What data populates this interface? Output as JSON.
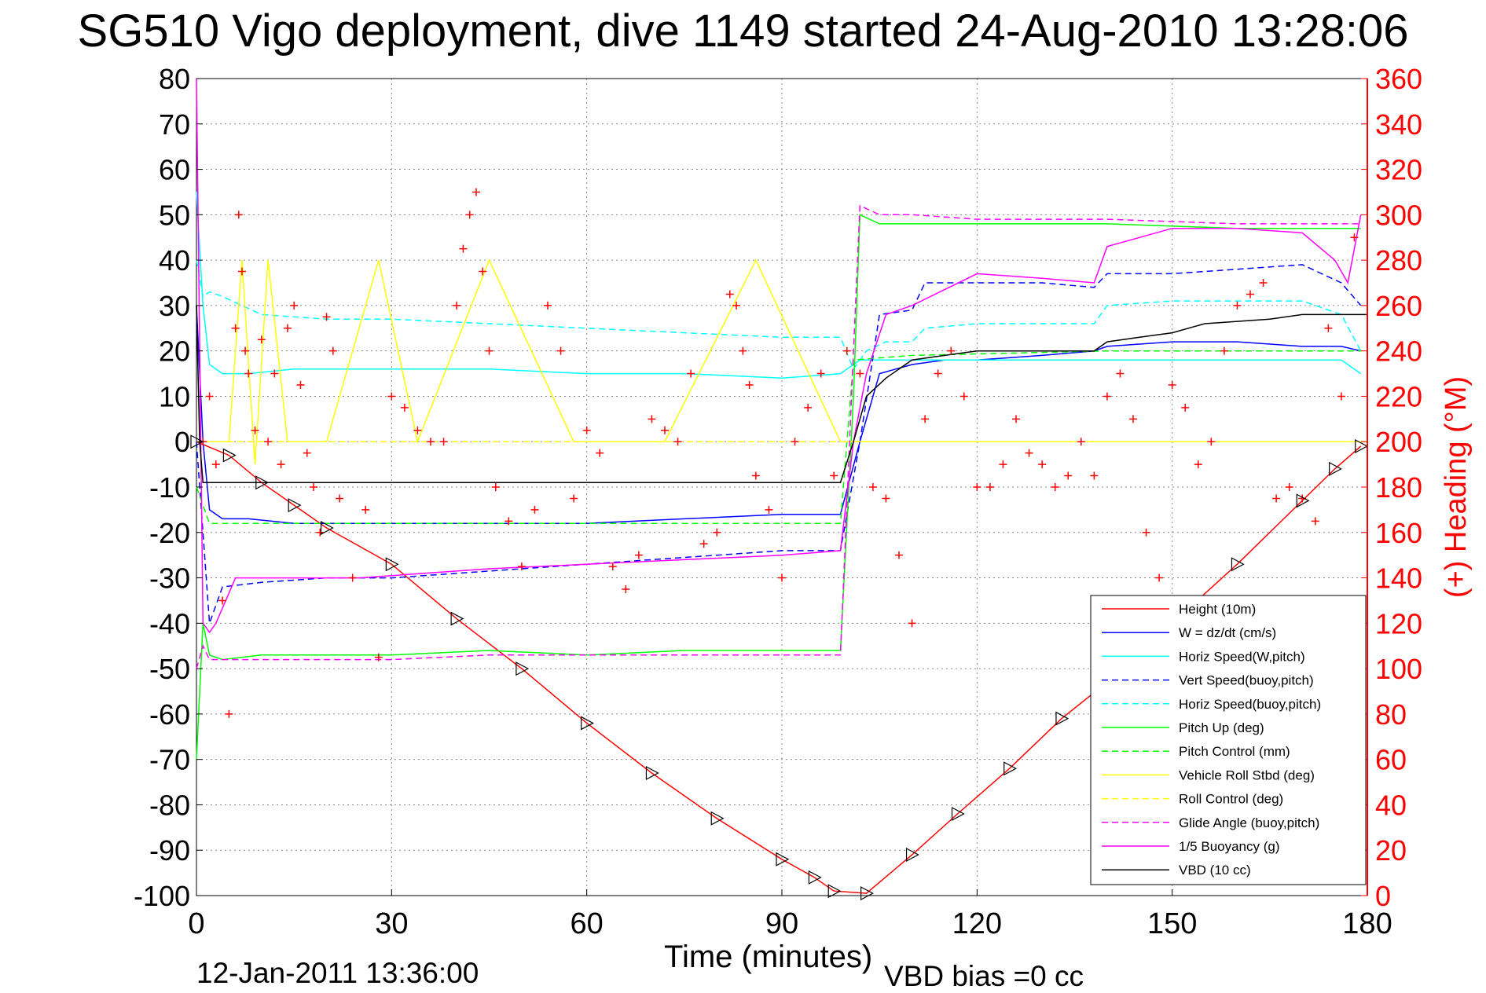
{
  "title": "SG510 Vigo deployment, dive 1149 started 24-Aug-2010 13:28:06",
  "footer": {
    "date": "12-Jan-2011 13:36:00",
    "vbd_bias": "VBD bias =0 cc"
  },
  "chart_data": {
    "type": "line",
    "xlabel": "Time (minutes)",
    "ylabel": "",
    "y2label": "(+) Heading (°M)",
    "xlim": [
      0,
      180
    ],
    "ylim": [
      -100,
      80
    ],
    "y2lim": [
      0,
      360
    ],
    "xticks": [
      "0",
      "30",
      "60",
      "90",
      "120",
      "150",
      "180"
    ],
    "yticks": [
      "80",
      "70",
      "60",
      "50",
      "40",
      "30",
      "20",
      "10",
      "0",
      "-10",
      "-20",
      "-30",
      "-40",
      "-50",
      "-60",
      "-70",
      "-80",
      "-90",
      "-100"
    ],
    "y2ticks": [
      "360",
      "340",
      "320",
      "300",
      "280",
      "260",
      "240",
      "220",
      "200",
      "180",
      "160",
      "140",
      "120",
      "100",
      "80",
      "60",
      "40",
      "20",
      "0"
    ],
    "grid": true,
    "legend_position": "lower-right",
    "colors": {
      "red": "#ff0000",
      "blue": "#0000ff",
      "cyan": "#00ffff",
      "green": "#00ff00",
      "yellow": "#ffff00",
      "magenta": "#ff00ff",
      "black": "#000000"
    },
    "series": [
      {
        "name": "Height (10m)",
        "color": "#ff0000",
        "style": "solid",
        "x": [
          0,
          5,
          10,
          15,
          20,
          30,
          40,
          50,
          60,
          70,
          80,
          90,
          95,
          98,
          103,
          110,
          117,
          125,
          133,
          140,
          150,
          160,
          170,
          175,
          179
        ],
        "y": [
          0,
          -3,
          -9,
          -14,
          -19,
          -27,
          -39,
          -50,
          -62,
          -73,
          -83,
          -92,
          -96,
          -99,
          -99.5,
          -91,
          -82,
          -72,
          -61,
          -53,
          -40,
          -27,
          -13,
          -6,
          -1
        ]
      },
      {
        "name": "W = dz/dt (cm/s)",
        "color": "#0000ff",
        "style": "solid",
        "x": [
          0,
          1,
          2,
          4,
          8,
          15,
          30,
          45,
          60,
          75,
          90,
          99,
          102,
          105,
          110,
          115,
          120,
          130,
          138,
          140,
          150,
          160,
          170,
          176,
          179
        ],
        "y": [
          30,
          0,
          -15,
          -17,
          -17,
          -18,
          -18,
          -18,
          -18,
          -17,
          -16,
          -16,
          0,
          15,
          17,
          18,
          18,
          19,
          20,
          21,
          22,
          22,
          21,
          21,
          20
        ]
      },
      {
        "name": "Horiz Speed(W,pitch)",
        "color": "#00ffff",
        "style": "solid",
        "x": [
          0,
          1,
          2,
          4,
          8,
          15,
          30,
          45,
          60,
          75,
          90,
          99,
          102,
          105,
          110,
          120,
          140,
          160,
          176,
          179
        ],
        "y": [
          55,
          30,
          17,
          15,
          15,
          16,
          16,
          16,
          15,
          15,
          14,
          15,
          18,
          18,
          18,
          18,
          18,
          18,
          18,
          15
        ]
      },
      {
        "name": "Vert Speed(buoy,pitch)",
        "color": "#0000ff",
        "style": "dashed",
        "x": [
          0,
          1,
          2,
          4,
          10,
          20,
          30,
          40,
          50,
          60,
          70,
          80,
          90,
          99,
          102,
          105,
          110,
          112,
          120,
          130,
          138,
          140,
          150,
          160,
          170,
          176,
          179
        ],
        "y": [
          0,
          -20,
          -40,
          -32,
          -31,
          -30,
          -30,
          -29,
          -28,
          -27,
          -26,
          -25,
          -24,
          -24,
          0,
          28,
          29,
          35,
          35,
          35,
          34,
          37,
          37,
          38,
          39,
          35,
          30
        ]
      },
      {
        "name": "Horiz Speed(buoy,pitch)",
        "color": "#00ffff",
        "style": "dashed",
        "x": [
          0,
          1,
          2,
          4,
          10,
          20,
          30,
          45,
          60,
          75,
          90,
          99,
          101,
          103,
          106,
          110,
          112,
          120,
          130,
          138,
          140,
          150,
          160,
          170,
          176,
          179
        ],
        "y": [
          40,
          32,
          33,
          32,
          28,
          27,
          27,
          26,
          25,
          24,
          23,
          23,
          16,
          20,
          22,
          22,
          25,
          26,
          26,
          26,
          30,
          31,
          31,
          31,
          28,
          20
        ]
      },
      {
        "name": "Pitch Up (deg)",
        "color": "#00ff00",
        "style": "solid",
        "x": [
          0,
          1,
          2,
          4,
          10,
          20,
          30,
          45,
          60,
          75,
          90,
          99,
          101,
          102,
          105,
          110,
          120,
          140,
          160,
          170,
          176,
          179
        ],
        "y": [
          -70,
          -40,
          -47,
          -48,
          -47,
          -47,
          -47,
          -46,
          -47,
          -46,
          -46,
          -46,
          10,
          50,
          48,
          48,
          48,
          48,
          47,
          47,
          47,
          47
        ]
      },
      {
        "name": "Pitch Control (mm)",
        "color": "#00ff00",
        "style": "dashed",
        "x": [
          0,
          2,
          5,
          99,
          101,
          110,
          140,
          179
        ],
        "y": [
          -10,
          -18,
          -18,
          -18,
          18,
          19,
          20,
          20
        ]
      },
      {
        "name": "Vehicle Roll Stbd (deg)",
        "color": "#ffff00",
        "style": "solid",
        "x": [
          0,
          5,
          7,
          9,
          11,
          14,
          20,
          28,
          34,
          45,
          58,
          72,
          86,
          99,
          102,
          110,
          130,
          145,
          160,
          170,
          179
        ],
        "y": [
          0,
          0,
          40,
          -5,
          40,
          0,
          0,
          40,
          0,
          40,
          0,
          0,
          40,
          0,
          0,
          0,
          0,
          0,
          0,
          0,
          0
        ]
      },
      {
        "name": "Roll Control (deg)",
        "color": "#ffff00",
        "style": "dashed",
        "x": [
          0,
          180
        ],
        "y": [
          0,
          0
        ]
      },
      {
        "name": "Glide Angle (buoy,pitch)",
        "color": "#ff00ff",
        "style": "dashed",
        "x": [
          0,
          1,
          2,
          4,
          10,
          20,
          30,
          45,
          60,
          75,
          90,
          99,
          101,
          102,
          105,
          110,
          120,
          140,
          160,
          170,
          176,
          179
        ],
        "y": [
          -50,
          -45,
          -48,
          -48,
          -48,
          -48,
          -48,
          -47,
          -47,
          -47,
          -47,
          -47,
          20,
          52,
          50,
          50,
          49,
          49,
          48,
          48,
          48,
          48
        ]
      },
      {
        "name": "1/5 Buoyancy (g)",
        "color": "#ff00ff",
        "style": "solid",
        "x": [
          0,
          1,
          2,
          3,
          6,
          15,
          25,
          35,
          45,
          60,
          75,
          90,
          99,
          101,
          103,
          106,
          110,
          120,
          130,
          138,
          140,
          150,
          160,
          170,
          175,
          177,
          179
        ],
        "y": [
          80,
          -40,
          -42,
          -40,
          -30,
          -30,
          -30,
          -29,
          -28,
          -27,
          -26,
          -25,
          -24,
          0,
          15,
          28,
          30,
          37,
          36,
          35,
          43,
          47,
          47,
          46,
          40,
          35,
          50
        ]
      },
      {
        "name": "VBD (10 cc)",
        "color": "#000000",
        "style": "solid",
        "x": [
          0,
          0.5,
          1,
          3,
          30,
          60,
          90,
          99,
          101,
          103,
          106,
          110,
          115,
          120,
          130,
          138,
          139,
          140,
          145,
          150,
          155,
          165,
          170,
          180
        ],
        "y": [
          30,
          0,
          -9,
          -9,
          -9,
          -9,
          -9,
          -9,
          0,
          10,
          14,
          18,
          19,
          20,
          20,
          20,
          21,
          22,
          23,
          24,
          26,
          27,
          28,
          28
        ]
      }
    ],
    "heading_points": {
      "name": "(+) Heading (°M)",
      "color": "#ff0000",
      "marker": "+",
      "x": [
        1,
        2,
        3,
        4,
        5,
        6,
        6.5,
        7,
        7.5,
        8,
        9,
        10,
        11,
        12,
        13,
        14,
        15,
        16,
        17,
        18,
        19,
        20,
        21,
        22,
        24,
        26,
        28,
        30,
        32,
        34,
        36,
        38,
        40,
        41,
        42,
        43,
        44,
        45,
        46,
        48,
        50,
        52,
        54,
        56,
        58,
        60,
        62,
        64,
        66,
        68,
        70,
        72,
        74,
        76,
        78,
        80,
        82,
        83,
        84,
        85,
        86,
        88,
        90,
        92,
        94,
        96,
        98,
        100,
        102,
        104,
        106,
        108,
        110,
        112,
        114,
        116,
        118,
        120,
        122,
        124,
        126,
        128,
        130,
        132,
        134,
        136,
        138,
        140,
        142,
        144,
        146,
        148,
        150,
        152,
        154,
        156,
        158,
        160,
        162,
        164,
        166,
        168,
        170,
        172,
        174,
        176,
        178
      ],
      "y": [
        200,
        220,
        190,
        130,
        80,
        250,
        300,
        275,
        240,
        230,
        205,
        245,
        200,
        230,
        190,
        250,
        260,
        225,
        195,
        180,
        160,
        255,
        240,
        175,
        140,
        170,
        105,
        220,
        215,
        205,
        200,
        200,
        260,
        285,
        300,
        310,
        275,
        240,
        180,
        165,
        145,
        170,
        260,
        240,
        175,
        205,
        195,
        145,
        135,
        150,
        210,
        205,
        200,
        230,
        155,
        160,
        265,
        260,
        240,
        225,
        185,
        170,
        140,
        200,
        215,
        230,
        185,
        240,
        230,
        180,
        175,
        150,
        120,
        210,
        230,
        240,
        220,
        180,
        180,
        190,
        210,
        195,
        190,
        180,
        185,
        200,
        185,
        220,
        230,
        210,
        160,
        140,
        225,
        215,
        190,
        200,
        240,
        260,
        265,
        270,
        175,
        180,
        175,
        165,
        250,
        220,
        290
      ]
    }
  }
}
